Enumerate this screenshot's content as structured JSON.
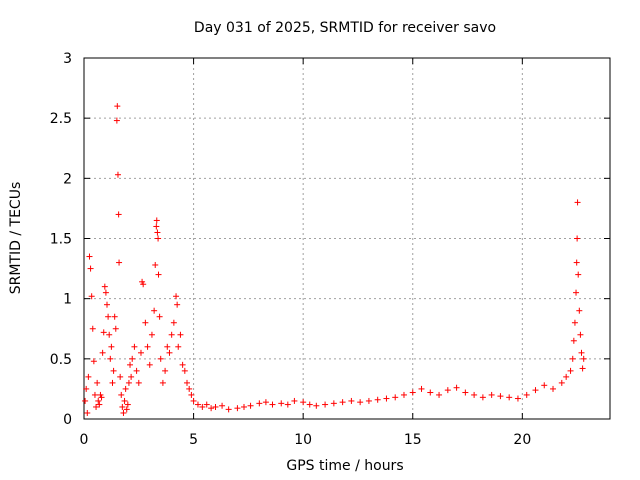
{
  "chart_data": {
    "type": "scatter",
    "title": "Day 031 of 2025, SRMTID for receiver savo",
    "xlabel": "GPS time / hours",
    "ylabel": "SRMTID / TECUs",
    "xlim": [
      0,
      24
    ],
    "ylim": [
      0,
      3
    ],
    "x_ticks": [
      0,
      5,
      10,
      15,
      20
    ],
    "y_ticks": [
      0,
      0.5,
      1,
      1.5,
      2,
      2.5,
      3
    ],
    "x_tick_labels": [
      "0",
      "5",
      "10",
      "15",
      "20"
    ],
    "y_tick_labels": [
      "0",
      "0.5",
      "1",
      "1.5",
      "2",
      "2.5",
      "3"
    ],
    "grid": true,
    "marker": "+",
    "series": [
      {
        "name": "SRMTID",
        "color": "#ff0000",
        "points": [
          [
            0.05,
            0.15
          ],
          [
            0.1,
            0.25
          ],
          [
            0.15,
            0.05
          ],
          [
            0.2,
            0.35
          ],
          [
            0.25,
            1.35
          ],
          [
            0.3,
            1.25
          ],
          [
            0.35,
            1.02
          ],
          [
            0.4,
            0.75
          ],
          [
            0.45,
            0.48
          ],
          [
            0.5,
            0.2
          ],
          [
            0.55,
            0.1
          ],
          [
            0.6,
            0.3
          ],
          [
            0.65,
            0.15
          ],
          [
            0.7,
            0.12
          ],
          [
            0.75,
            0.2
          ],
          [
            0.8,
            0.18
          ],
          [
            0.85,
            0.55
          ],
          [
            0.9,
            0.72
          ],
          [
            0.95,
            1.1
          ],
          [
            1.0,
            1.05
          ],
          [
            1.05,
            0.95
          ],
          [
            1.1,
            0.85
          ],
          [
            1.15,
            0.7
          ],
          [
            1.2,
            0.5
          ],
          [
            1.25,
            0.6
          ],
          [
            1.3,
            0.3
          ],
          [
            1.35,
            0.4
          ],
          [
            1.4,
            0.85
          ],
          [
            1.45,
            0.75
          ],
          [
            1.5,
            2.48
          ],
          [
            1.52,
            2.6
          ],
          [
            1.55,
            2.03
          ],
          [
            1.58,
            1.7
          ],
          [
            1.6,
            1.3
          ],
          [
            1.65,
            0.35
          ],
          [
            1.7,
            0.2
          ],
          [
            1.75,
            0.1
          ],
          [
            1.8,
            0.05
          ],
          [
            1.85,
            0.15
          ],
          [
            1.9,
            0.25
          ],
          [
            1.95,
            0.08
          ],
          [
            2.0,
            0.12
          ],
          [
            2.05,
            0.3
          ],
          [
            2.1,
            0.45
          ],
          [
            2.15,
            0.35
          ],
          [
            2.2,
            0.5
          ],
          [
            2.3,
            0.6
          ],
          [
            2.4,
            0.4
          ],
          [
            2.5,
            0.3
          ],
          [
            2.6,
            0.55
          ],
          [
            2.65,
            1.14
          ],
          [
            2.7,
            1.12
          ],
          [
            2.8,
            0.8
          ],
          [
            2.9,
            0.6
          ],
          [
            3.0,
            0.45
          ],
          [
            3.1,
            0.7
          ],
          [
            3.2,
            0.9
          ],
          [
            3.25,
            1.28
          ],
          [
            3.3,
            1.6
          ],
          [
            3.32,
            1.65
          ],
          [
            3.35,
            1.55
          ],
          [
            3.38,
            1.5
          ],
          [
            3.4,
            1.2
          ],
          [
            3.45,
            0.85
          ],
          [
            3.5,
            0.5
          ],
          [
            3.6,
            0.3
          ],
          [
            3.7,
            0.4
          ],
          [
            3.8,
            0.6
          ],
          [
            3.9,
            0.55
          ],
          [
            4.0,
            0.7
          ],
          [
            4.1,
            0.8
          ],
          [
            4.2,
            1.02
          ],
          [
            4.25,
            0.95
          ],
          [
            4.3,
            0.6
          ],
          [
            4.4,
            0.7
          ],
          [
            4.5,
            0.45
          ],
          [
            4.6,
            0.4
          ],
          [
            4.7,
            0.3
          ],
          [
            4.8,
            0.25
          ],
          [
            4.9,
            0.2
          ],
          [
            5.0,
            0.15
          ],
          [
            5.2,
            0.12
          ],
          [
            5.4,
            0.1
          ],
          [
            5.6,
            0.12
          ],
          [
            5.8,
            0.09
          ],
          [
            6.0,
            0.1
          ],
          [
            6.3,
            0.11
          ],
          [
            6.6,
            0.08
          ],
          [
            7.0,
            0.09
          ],
          [
            7.3,
            0.1
          ],
          [
            7.6,
            0.11
          ],
          [
            8.0,
            0.13
          ],
          [
            8.3,
            0.14
          ],
          [
            8.6,
            0.12
          ],
          [
            9.0,
            0.13
          ],
          [
            9.3,
            0.12
          ],
          [
            9.6,
            0.15
          ],
          [
            10.0,
            0.14
          ],
          [
            10.3,
            0.12
          ],
          [
            10.6,
            0.11
          ],
          [
            11.0,
            0.12
          ],
          [
            11.4,
            0.13
          ],
          [
            11.8,
            0.14
          ],
          [
            12.2,
            0.15
          ],
          [
            12.6,
            0.14
          ],
          [
            13.0,
            0.15
          ],
          [
            13.4,
            0.16
          ],
          [
            13.8,
            0.17
          ],
          [
            14.2,
            0.18
          ],
          [
            14.6,
            0.2
          ],
          [
            15.0,
            0.22
          ],
          [
            15.4,
            0.25
          ],
          [
            15.8,
            0.22
          ],
          [
            16.2,
            0.2
          ],
          [
            16.6,
            0.24
          ],
          [
            17.0,
            0.26
          ],
          [
            17.4,
            0.22
          ],
          [
            17.8,
            0.2
          ],
          [
            18.2,
            0.18
          ],
          [
            18.6,
            0.2
          ],
          [
            19.0,
            0.19
          ],
          [
            19.4,
            0.18
          ],
          [
            19.8,
            0.17
          ],
          [
            20.2,
            0.2
          ],
          [
            20.6,
            0.24
          ],
          [
            21.0,
            0.28
          ],
          [
            21.4,
            0.25
          ],
          [
            21.8,
            0.3
          ],
          [
            22.0,
            0.35
          ],
          [
            22.2,
            0.4
          ],
          [
            22.3,
            0.5
          ],
          [
            22.35,
            0.65
          ],
          [
            22.4,
            0.8
          ],
          [
            22.45,
            1.05
          ],
          [
            22.48,
            1.3
          ],
          [
            22.5,
            1.5
          ],
          [
            22.52,
            1.8
          ],
          [
            22.55,
            1.2
          ],
          [
            22.6,
            0.9
          ],
          [
            22.65,
            0.7
          ],
          [
            22.7,
            0.55
          ],
          [
            22.75,
            0.42
          ],
          [
            22.8,
            0.5
          ]
        ]
      }
    ]
  }
}
